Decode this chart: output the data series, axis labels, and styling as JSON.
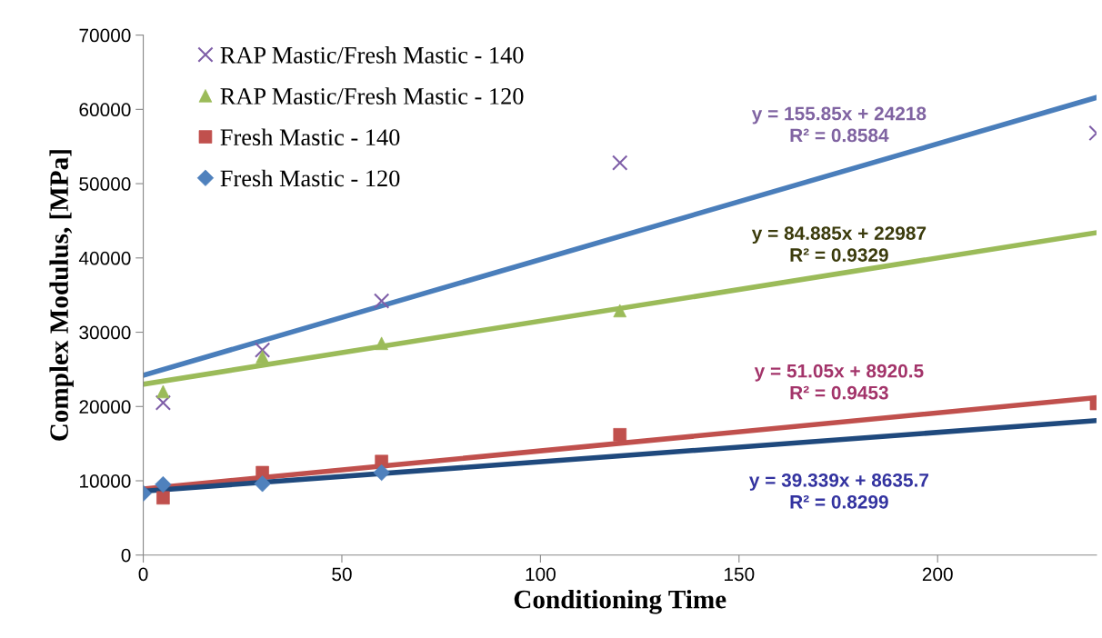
{
  "chart_data": {
    "type": "scatter",
    "xlabel": "Conditioning Time",
    "ylabel": "Complex Modulus, [MPa]",
    "xlim": [
      0,
      240
    ],
    "xticks": [
      0,
      50,
      100,
      150,
      200
    ],
    "ylim": [
      0,
      70000
    ],
    "yticks": [
      0,
      10000,
      20000,
      30000,
      40000,
      50000,
      60000,
      70000
    ],
    "grid": false,
    "legend": "top left",
    "series": [
      {
        "name": "RAP Mastic/Fresh Mastic - 140",
        "marker": "cross",
        "color": "#7f5fa8",
        "x": [
          5,
          30,
          60,
          120,
          240
        ],
        "values": [
          20500,
          27600,
          34200,
          52800,
          56800
        ]
      },
      {
        "name": "RAP Mastic/Fresh Mastic - 120",
        "marker": "triangle",
        "color": "#9bbb59",
        "x": [
          5,
          30,
          60,
          120
        ],
        "values": [
          22000,
          26700,
          28500,
          32900
        ]
      },
      {
        "name": "Fresh Mastic - 140",
        "marker": "square",
        "color": "#c0504d",
        "x": [
          5,
          30,
          60,
          120,
          240
        ],
        "values": [
          7700,
          11100,
          12600,
          16200,
          20400
        ]
      },
      {
        "name": "Fresh Mastic - 120",
        "marker": "diamond",
        "color": "#4f81bd",
        "x": [
          0,
          5,
          30,
          60
        ],
        "values": [
          8300,
          9500,
          9600,
          11100
        ]
      },
      {
        "type": "line",
        "color": "#4a7ebb",
        "x": [
          0,
          240
        ],
        "values": [
          24200,
          61600
        ]
      },
      {
        "type": "line",
        "color": "#9bbb59",
        "x": [
          0,
          240
        ],
        "values": [
          23000,
          43400
        ]
      },
      {
        "type": "line",
        "color": "#c0504d",
        "x": [
          0,
          240
        ],
        "values": [
          8900,
          21200
        ]
      },
      {
        "type": "line",
        "color": "#1f497d",
        "x": [
          0,
          240
        ],
        "values": [
          8600,
          18100
        ]
      }
    ],
    "annotations": [
      "y = 155.85x + 24218\nR² = 0.8584",
      "y = 84.885x + 22987\nR² = 0.9329",
      "y = 51.05x + 8920.5\nR² = 0.9453",
      "y = 39.339x + 8635.7\nR² = 0.8299"
    ]
  }
}
